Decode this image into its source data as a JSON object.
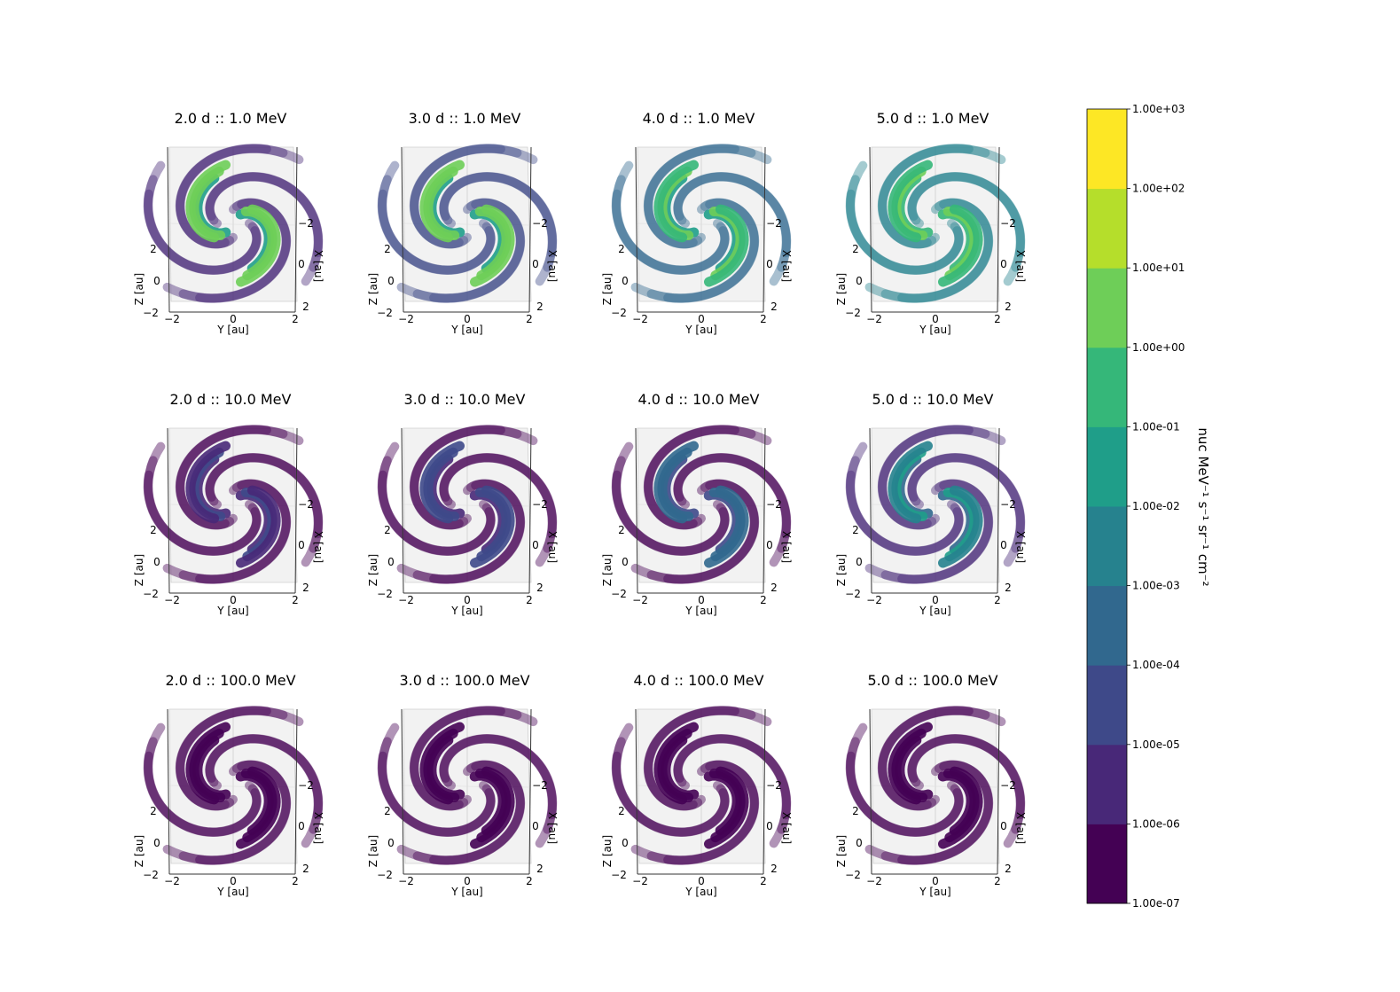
{
  "chart_data": {
    "type": "scatter",
    "subtype": "3d-spiral-flux-grid",
    "panels": [
      {
        "title": "2.0 d :: 1.0 MeV",
        "time_d": 2.0,
        "energy_MeV": 1.0,
        "peak_log10": 1.3,
        "base_log10": -5.3
      },
      {
        "title": "3.0 d :: 1.0 MeV",
        "time_d": 3.0,
        "energy_MeV": 1.0,
        "peak_log10": 1.2,
        "base_log10": -4.2
      },
      {
        "title": "4.0 d :: 1.0 MeV",
        "time_d": 4.0,
        "energy_MeV": 1.0,
        "peak_log10": 0.7,
        "base_log10": -3.2
      },
      {
        "title": "5.0 d :: 1.0 MeV",
        "time_d": 5.0,
        "energy_MeV": 1.0,
        "peak_log10": 0.6,
        "base_log10": -2.6
      },
      {
        "title": "2.0 d :: 10.0 MeV",
        "time_d": 2.0,
        "energy_MeV": 10.0,
        "peak_log10": -4.4,
        "base_log10": -6.6
      },
      {
        "title": "3.0 d :: 10.0 MeV",
        "time_d": 3.0,
        "energy_MeV": 10.0,
        "peak_log10": -4.0,
        "base_log10": -6.5
      },
      {
        "title": "4.0 d :: 10.0 MeV",
        "time_d": 4.0,
        "energy_MeV": 10.0,
        "peak_log10": -2.7,
        "base_log10": -6.3
      },
      {
        "title": "5.0 d :: 10.0 MeV",
        "time_d": 5.0,
        "energy_MeV": 10.0,
        "peak_log10": -1.4,
        "base_log10": -5.8
      },
      {
        "title": "2.0 d :: 100.0 MeV",
        "time_d": 2.0,
        "energy_MeV": 100.0,
        "peak_log10": -6.7,
        "base_log10": -7.0
      },
      {
        "title": "3.0 d :: 100.0 MeV",
        "time_d": 3.0,
        "energy_MeV": 100.0,
        "peak_log10": -6.7,
        "base_log10": -7.0
      },
      {
        "title": "4.0 d :: 100.0 MeV",
        "time_d": 4.0,
        "energy_MeV": 100.0,
        "peak_log10": -6.7,
        "base_log10": -7.0
      },
      {
        "title": "5.0 d :: 100.0 MeV",
        "time_d": 5.0,
        "energy_MeV": 100.0,
        "peak_log10": -6.6,
        "base_log10": -7.0
      }
    ],
    "axes": {
      "xlabel": "Y [au]",
      "ylabel": "Z [au]",
      "zlabel": "X [au]",
      "xticks": [
        "−2",
        "0",
        "2"
      ],
      "yticks": [
        "−2",
        "0",
        "2"
      ],
      "zticks": [
        "−2",
        "0",
        "2"
      ],
      "xlim": [
        -2.5,
        2.5
      ],
      "ylim": [
        -2.5,
        2.5
      ],
      "zlim": [
        -2.5,
        2.5
      ]
    },
    "colorbar": {
      "label": "nuc MeV⁻¹ s⁻¹ sr⁻¹ cm⁻²",
      "scale": "log",
      "ticks": [
        "1.00e-07",
        "1.00e-06",
        "1.00e-05",
        "1.00e-04",
        "1.00e-03",
        "1.00e-02",
        "1.00e-01",
        "1.00e+00",
        "1.00e+01",
        "1.00e+02",
        "1.00e+03"
      ],
      "range_log10": [
        -7,
        3
      ],
      "colors": [
        "#440154",
        "#482878",
        "#3e4989",
        "#31688e",
        "#26828e",
        "#1f9e89",
        "#35b779",
        "#6ece58",
        "#b5de2b",
        "#fde725"
      ]
    }
  }
}
